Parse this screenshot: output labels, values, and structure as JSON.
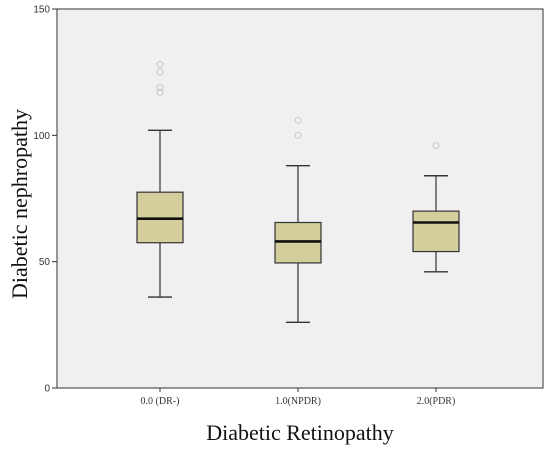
{
  "chart_data": {
    "type": "boxplot",
    "title": "",
    "xlabel": "Diabetic Retinopathy",
    "ylabel": "Diabetic nephropathy",
    "ylim": [
      0,
      150
    ],
    "y_ticks": [
      0,
      50,
      100,
      150
    ],
    "grid": false,
    "legend": "none",
    "colors": {
      "plot_background": "#f0f0f0",
      "box_fill": "#d3ce9c",
      "box_stroke": "#333333",
      "median": "#111111",
      "outlier": "#c8c8c8"
    },
    "categories": [
      "0.0 (DR-)",
      "1.0(NPDR)",
      "2.0(PDR)"
    ],
    "boxes": [
      {
        "category": "0.0 (DR-)",
        "whisker_low": 36,
        "q1": 57.5,
        "median": 67,
        "q3": 77.5,
        "whisker_high": 102,
        "outliers": [
          117,
          119,
          125,
          128
        ]
      },
      {
        "category": "1.0(NPDR)",
        "whisker_low": 26,
        "q1": 49.5,
        "median": 58,
        "q3": 65.5,
        "whisker_high": 88,
        "outliers": [
          100,
          106
        ]
      },
      {
        "category": "2.0(PDR)",
        "whisker_low": 46,
        "q1": 54,
        "median": 65.5,
        "q3": 70,
        "whisker_high": 84,
        "outliers": [
          96
        ]
      }
    ]
  }
}
